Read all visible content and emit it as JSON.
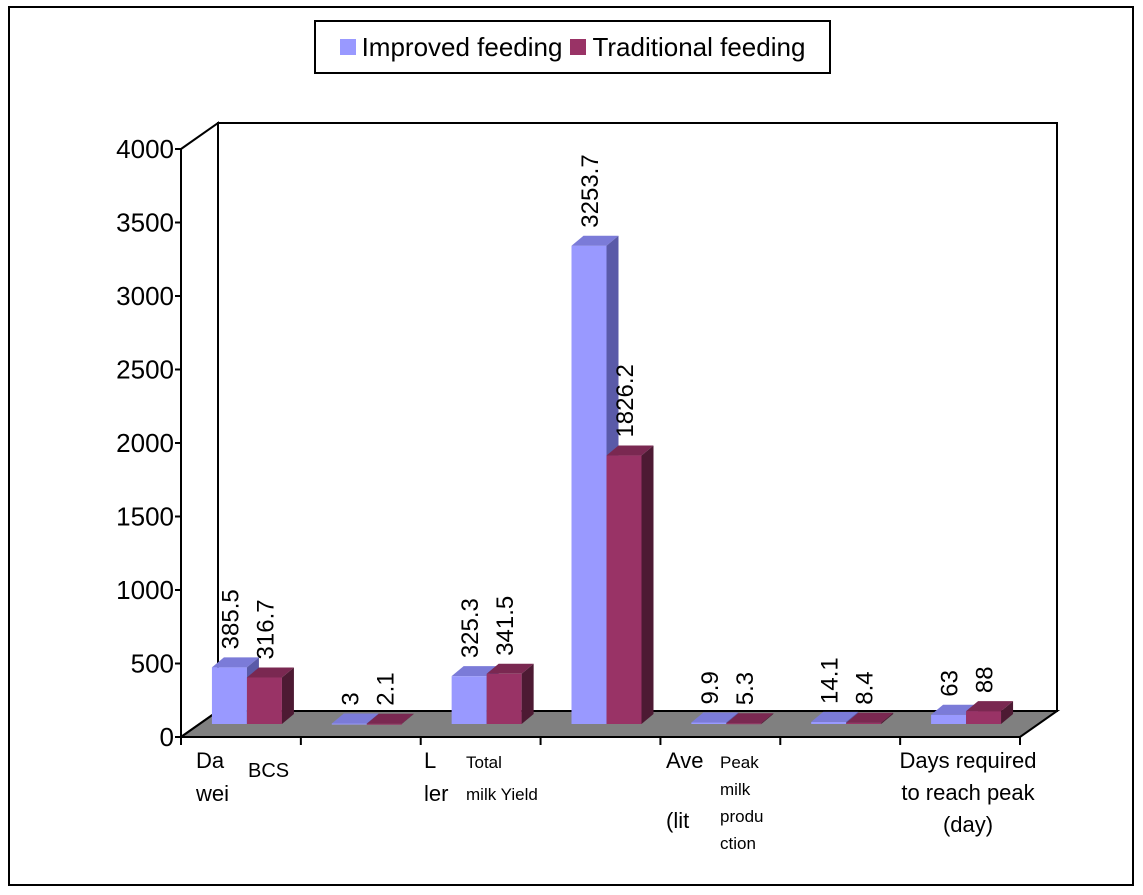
{
  "chart_data": {
    "type": "bar",
    "title": "",
    "xlabel": "",
    "ylabel": "",
    "ylim": [
      0,
      4000
    ],
    "yticks": [
      "0",
      "500",
      "1000",
      "1500",
      "2000",
      "2500",
      "3000",
      "3500",
      "4000"
    ],
    "categories": [
      [
        "Da",
        "wei"
      ],
      [
        "BCS"
      ],
      [
        "L",
        "ler"
      ],
      [
        "Total",
        "milk Yield"
      ],
      [
        "Ave",
        "(lit"
      ],
      [
        "Peak",
        "milk",
        "produ",
        "ction"
      ],
      [
        "Days required",
        "to reach peak",
        "(day)"
      ]
    ],
    "groups": 7,
    "series": [
      {
        "name": "Improved feeding",
        "values": [
          385.5,
          3,
          325.3,
          3253.7,
          9.9,
          14.1,
          63
        ],
        "labels": [
          "385.5",
          "3",
          "325.3",
          "3253.7",
          "9.9",
          "14.1",
          "63"
        ]
      },
      {
        "name": "Traditional feeding",
        "values": [
          316.7,
          2.1,
          341.5,
          1826.2,
          5.3,
          8.4,
          88
        ],
        "labels": [
          "316.7",
          "2.1",
          "341.5",
          "1826.2",
          "5.3",
          "8.4",
          "88"
        ]
      }
    ],
    "legend": "top-center",
    "grid": false,
    "colors": {
      "improved_front": "#9999ff",
      "improved_top": "#7b7bd8",
      "improved_side": "#5a5aa8",
      "traditional_front": "#993366",
      "traditional_top": "#7a2851",
      "traditional_side": "#4d1a33",
      "floor": "#808080"
    }
  }
}
